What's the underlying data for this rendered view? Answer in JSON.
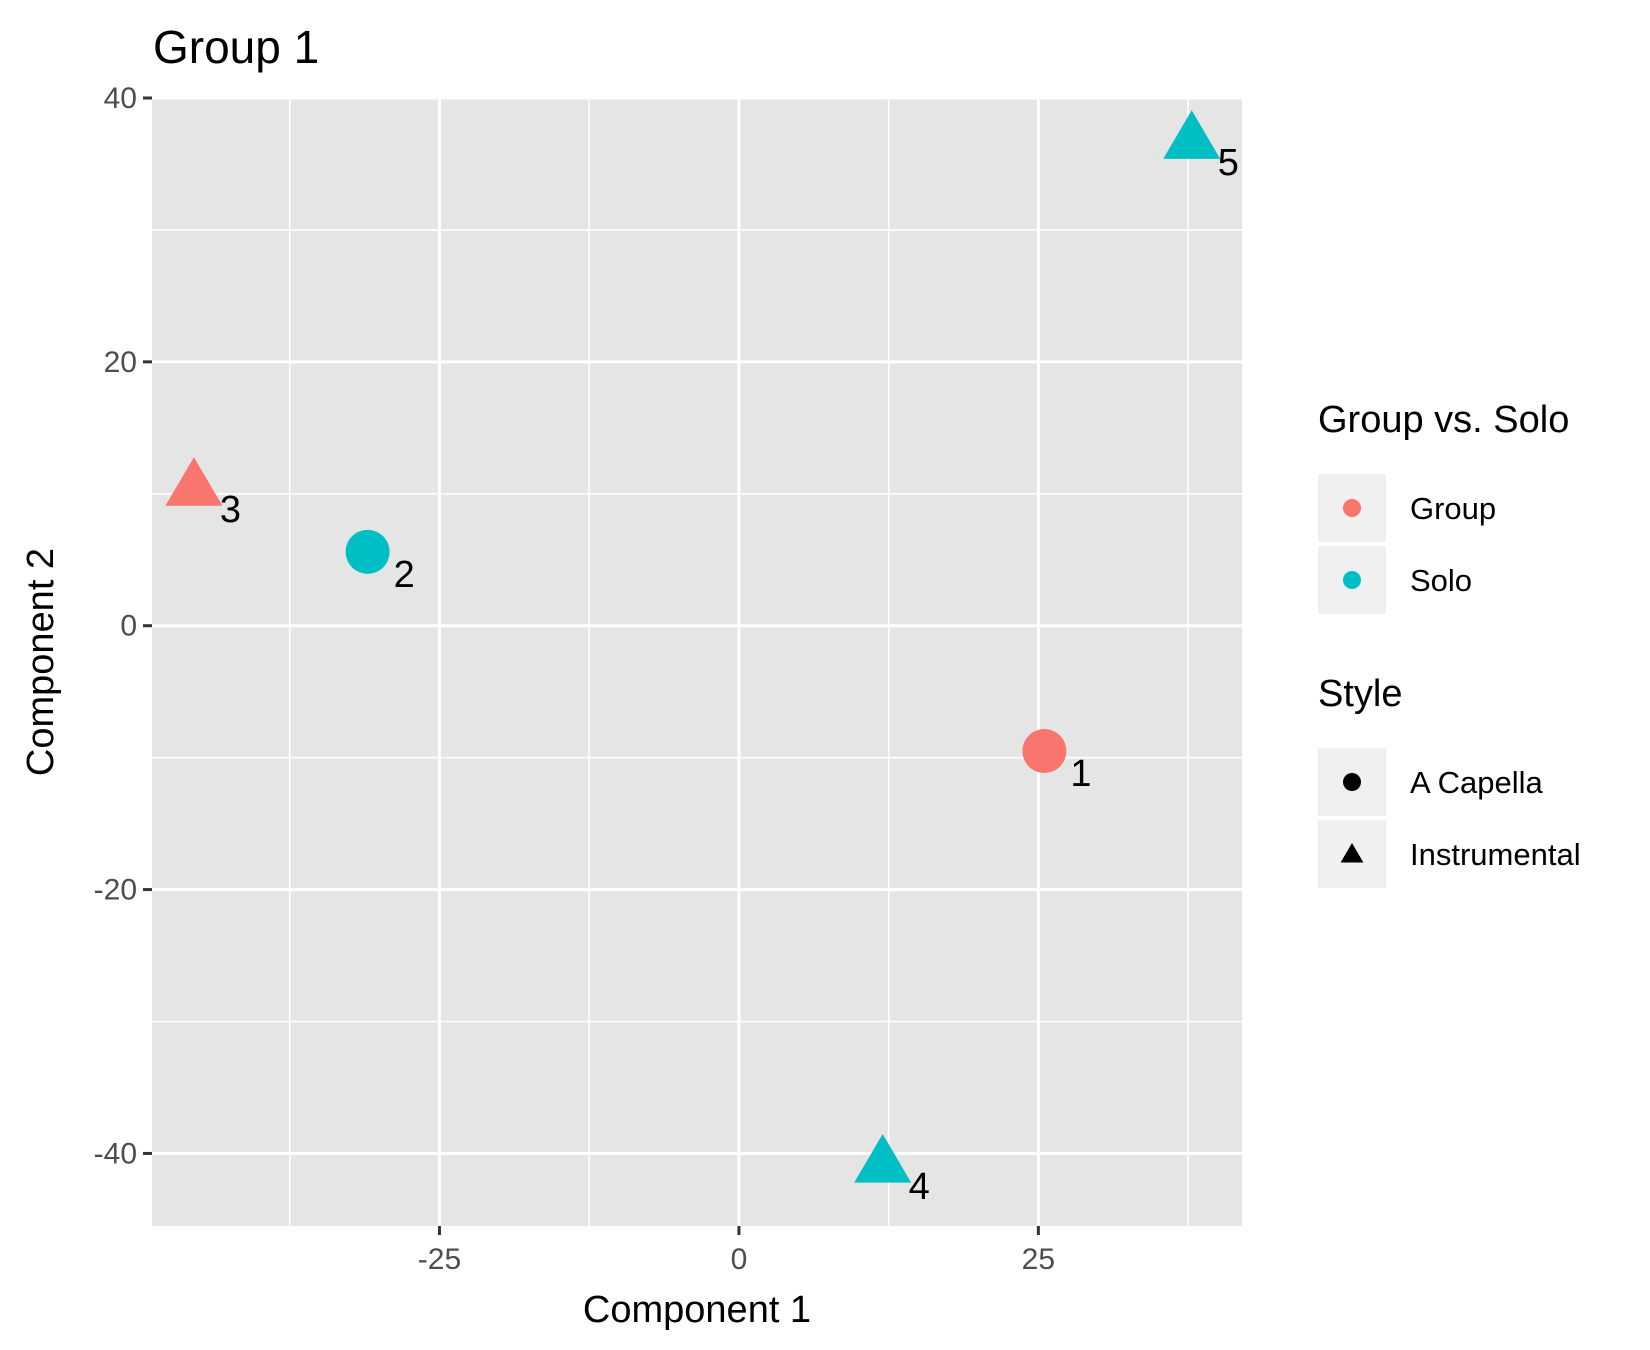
{
  "chart_data": {
    "type": "scatter",
    "title": "Group 1",
    "xlabel": "Component 1",
    "ylabel": "Component 2",
    "xlim": [
      -49,
      42
    ],
    "ylim": [
      -45.5,
      40
    ],
    "x_ticks": [
      {
        "value": -25,
        "label": "-25"
      },
      {
        "value": 0,
        "label": "0"
      },
      {
        "value": 25,
        "label": "25"
      }
    ],
    "y_ticks": [
      {
        "value": 40,
        "label": "40"
      },
      {
        "value": 20,
        "label": "20"
      },
      {
        "value": 0,
        "label": "0"
      },
      {
        "value": -20,
        "label": "-20"
      },
      {
        "value": -40,
        "label": "-40"
      }
    ],
    "grid": true,
    "legend_position": "right",
    "points": [
      {
        "label": "1",
        "x": 25.5,
        "y": -9.5,
        "group": "Group",
        "style": "A Capella"
      },
      {
        "label": "2",
        "x": -31,
        "y": 5.6,
        "group": "Solo",
        "style": "A Capella"
      },
      {
        "label": "3",
        "x": -45.5,
        "y": 10.5,
        "group": "Group",
        "style": "Instrumental"
      },
      {
        "label": "4",
        "x": 12,
        "y": -40.8,
        "group": "Solo",
        "style": "Instrumental"
      },
      {
        "label": "5",
        "x": 37.8,
        "y": 36.8,
        "group": "Solo",
        "style": "Instrumental"
      }
    ],
    "legends": [
      {
        "title": "Group vs. Solo",
        "kind": "color",
        "entries": [
          {
            "label": "Group",
            "color": "#F8766D"
          },
          {
            "label": "Solo",
            "color": "#00BFC4"
          }
        ]
      },
      {
        "title": "Style",
        "kind": "shape",
        "entries": [
          {
            "label": "A Capella",
            "shape": "circle-icon"
          },
          {
            "label": "Instrumental",
            "shape": "triangle-icon"
          }
        ]
      }
    ],
    "colors": {
      "Group": "#F8766D",
      "Solo": "#00BFC4",
      "panel": "#e5e5e5",
      "grid": "#ffffff",
      "legend_key_bg": "#f0f0f0"
    }
  }
}
